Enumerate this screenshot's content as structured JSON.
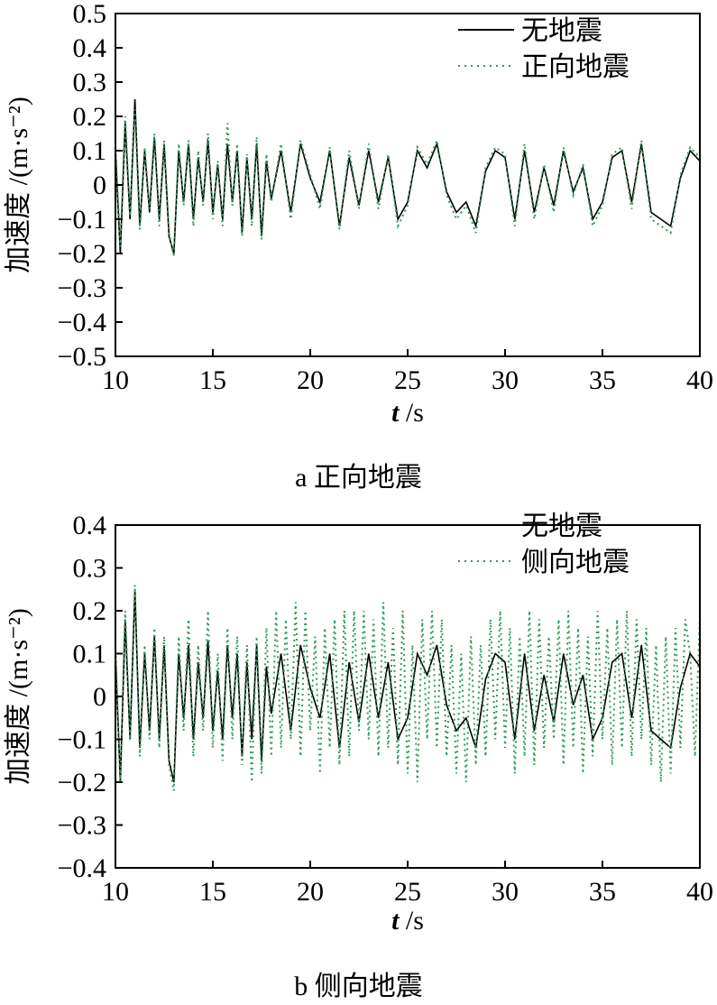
{
  "chart_data": [
    {
      "type": "line",
      "caption": "a 正向地震",
      "ylabel": "加速度 /(m·s⁻²)",
      "xlabel_var": "t",
      "xlabel_unit": "/s",
      "xlim": [
        10,
        40
      ],
      "ylim": [
        -0.5,
        0.5
      ],
      "xticks": [
        10,
        15,
        20,
        25,
        30,
        35,
        40
      ],
      "yticks": [
        -0.5,
        -0.4,
        -0.3,
        -0.2,
        -0.1,
        0,
        0.1,
        0.2,
        0.3,
        0.4,
        0.5
      ],
      "ytick_labels": [
        "−0.5",
        "−0.4",
        "−0.3",
        "−0.2",
        "−0.1",
        "0",
        "0.1",
        "0.2",
        "0.3",
        "0.4",
        "0.5"
      ],
      "xtick_labels": [
        "10",
        "15",
        "20",
        "25",
        "30",
        "35",
        "40"
      ],
      "legend_position": "top-right",
      "series": [
        {
          "name": "无地震",
          "color": "#000000",
          "style": "solid",
          "x": [
            10,
            10.25,
            10.5,
            10.75,
            11,
            11.25,
            11.5,
            11.75,
            12,
            12.25,
            12.5,
            12.75,
            13,
            13.25,
            13.5,
            13.75,
            14,
            14.25,
            14.5,
            14.75,
            15,
            15.25,
            15.5,
            15.75,
            16,
            16.25,
            16.5,
            16.75,
            17,
            17.25,
            17.5,
            17.75,
            18,
            18.5,
            19,
            19.5,
            20,
            20.5,
            21,
            21.5,
            22,
            22.5,
            23,
            23.5,
            24,
            24.5,
            25,
            25.5,
            26,
            26.5,
            27,
            27.5,
            28,
            28.5,
            29,
            29.5,
            30,
            30.5,
            31,
            31.5,
            32,
            32.5,
            33,
            33.5,
            34,
            34.5,
            35,
            35.5,
            36,
            36.5,
            37,
            37.5,
            38,
            38.5,
            39,
            39.5,
            40
          ],
          "y": [
            0.1,
            -0.2,
            0.18,
            -0.1,
            0.25,
            -0.12,
            0.1,
            -0.08,
            0.14,
            -0.1,
            0.12,
            -0.15,
            -0.2,
            0.1,
            -0.05,
            0.12,
            -0.1,
            0.08,
            -0.05,
            0.13,
            -0.08,
            0.06,
            -0.1,
            0.12,
            -0.05,
            0.1,
            -0.14,
            0.08,
            -0.1,
            0.12,
            -0.15,
            0.07,
            -0.04,
            0.1,
            -0.08,
            0.12,
            0.02,
            -0.05,
            0.1,
            -0.12,
            0.08,
            -0.06,
            0.1,
            -0.05,
            0.08,
            -0.1,
            -0.05,
            0.1,
            0.05,
            0.12,
            -0.02,
            -0.08,
            -0.05,
            -0.12,
            0.04,
            0.1,
            0.08,
            -0.1,
            0.1,
            -0.08,
            0.05,
            -0.06,
            0.1,
            -0.02,
            0.05,
            -0.1,
            -0.05,
            0.08,
            0.1,
            -0.05,
            0.12,
            -0.08,
            -0.1,
            -0.12,
            0.02,
            0.1,
            0.07
          ]
        },
        {
          "name": "正向地震",
          "color": "#2e9a5a",
          "style": "dotted",
          "x": [
            10,
            10.25,
            10.5,
            10.75,
            11,
            11.25,
            11.5,
            11.75,
            12,
            12.25,
            12.5,
            12.75,
            13,
            13.25,
            13.5,
            13.75,
            14,
            14.25,
            14.5,
            14.75,
            15,
            15.25,
            15.5,
            15.75,
            16,
            16.25,
            16.5,
            16.75,
            17,
            17.25,
            17.5,
            17.75,
            18,
            18.5,
            19,
            19.5,
            20,
            20.5,
            21,
            21.5,
            22,
            22.5,
            23,
            23.5,
            24,
            24.5,
            25,
            25.5,
            26,
            26.5,
            27,
            27.5,
            28,
            28.5,
            29,
            29.5,
            30,
            30.5,
            31,
            31.5,
            32,
            32.5,
            33,
            33.5,
            34,
            34.5,
            35,
            35.5,
            36,
            36.5,
            37,
            37.5,
            38,
            38.5,
            39,
            39.5,
            40
          ],
          "y": [
            0.12,
            -0.18,
            0.2,
            -0.09,
            0.22,
            -0.13,
            0.11,
            -0.07,
            0.15,
            -0.12,
            0.13,
            -0.14,
            -0.21,
            0.12,
            -0.06,
            0.13,
            -0.12,
            0.1,
            -0.06,
            0.15,
            -0.1,
            0.07,
            -0.12,
            0.18,
            -0.06,
            0.12,
            -0.15,
            0.09,
            -0.12,
            0.14,
            -0.16,
            0.09,
            -0.05,
            0.12,
            -0.1,
            0.13,
            0.03,
            -0.07,
            0.11,
            -0.13,
            0.1,
            -0.07,
            0.12,
            -0.07,
            0.09,
            -0.12,
            -0.06,
            0.11,
            0.06,
            0.13,
            -0.03,
            -0.1,
            -0.06,
            -0.14,
            0.05,
            0.11,
            0.09,
            -0.12,
            0.12,
            -0.1,
            0.06,
            -0.08,
            0.11,
            -0.03,
            0.06,
            -0.12,
            -0.06,
            0.09,
            0.11,
            -0.07,
            0.13,
            -0.1,
            -0.12,
            -0.14,
            0.03,
            0.11,
            0.08
          ]
        }
      ]
    },
    {
      "type": "line",
      "caption": "b 侧向地震",
      "ylabel": "加速度 /(m·s⁻²)",
      "xlabel_var": "t",
      "xlabel_unit": "/s",
      "xlim": [
        10,
        40
      ],
      "ylim": [
        -0.4,
        0.4
      ],
      "xticks": [
        10,
        15,
        20,
        25,
        30,
        35,
        40
      ],
      "yticks": [
        -0.4,
        -0.3,
        -0.2,
        -0.1,
        0,
        0.1,
        0.2,
        0.3,
        0.4
      ],
      "ytick_labels": [
        "−0.4",
        "−0.3",
        "−0.2",
        "−0.1",
        "0",
        "0.1",
        "0.2",
        "0.3",
        "0.4"
      ],
      "xtick_labels": [
        "10",
        "15",
        "20",
        "25",
        "30",
        "35",
        "40"
      ],
      "legend_position": "top-right",
      "series": [
        {
          "name": "无地震",
          "color": "#000000",
          "style": "solid",
          "x": [
            10,
            10.25,
            10.5,
            10.75,
            11,
            11.25,
            11.5,
            11.75,
            12,
            12.25,
            12.5,
            12.75,
            13,
            13.25,
            13.5,
            13.75,
            14,
            14.25,
            14.5,
            14.75,
            15,
            15.25,
            15.5,
            15.75,
            16,
            16.25,
            16.5,
            16.75,
            17,
            17.25,
            17.5,
            17.75,
            18,
            18.5,
            19,
            19.5,
            20,
            20.5,
            21,
            21.5,
            22,
            22.5,
            23,
            23.5,
            24,
            24.5,
            25,
            25.5,
            26,
            26.5,
            27,
            27.5,
            28,
            28.5,
            29,
            29.5,
            30,
            30.5,
            31,
            31.5,
            32,
            32.5,
            33,
            33.5,
            34,
            34.5,
            35,
            35.5,
            36,
            36.5,
            37,
            37.5,
            38,
            38.5,
            39,
            39.5,
            40
          ],
          "y": [
            0.1,
            -0.2,
            0.18,
            -0.1,
            0.25,
            -0.12,
            0.1,
            -0.08,
            0.14,
            -0.1,
            0.12,
            -0.15,
            -0.2,
            0.1,
            -0.05,
            0.12,
            -0.1,
            0.08,
            -0.05,
            0.13,
            -0.08,
            0.06,
            -0.1,
            0.12,
            -0.05,
            0.1,
            -0.14,
            0.08,
            -0.1,
            0.12,
            -0.15,
            0.07,
            -0.04,
            0.1,
            -0.08,
            0.12,
            0.02,
            -0.05,
            0.1,
            -0.12,
            0.08,
            -0.06,
            0.1,
            -0.05,
            0.08,
            -0.1,
            -0.05,
            0.1,
            0.05,
            0.12,
            -0.02,
            -0.08,
            -0.05,
            -0.12,
            0.04,
            0.1,
            0.08,
            -0.1,
            0.1,
            -0.08,
            0.05,
            -0.06,
            0.1,
            -0.02,
            0.05,
            -0.1,
            -0.05,
            0.08,
            0.1,
            -0.05,
            0.12,
            -0.08,
            -0.1,
            -0.12,
            0.02,
            0.1,
            0.07
          ]
        },
        {
          "name": "侧向地震",
          "color": "#2e9a5a",
          "style": "dotted",
          "x": [
            10,
            10.25,
            10.5,
            10.75,
            11,
            11.25,
            11.5,
            11.75,
            12,
            12.25,
            12.5,
            12.75,
            13,
            13.25,
            13.5,
            13.75,
            14,
            14.25,
            14.5,
            14.75,
            15,
            15.25,
            15.5,
            15.75,
            16,
            16.25,
            16.5,
            16.75,
            17,
            17.25,
            17.5,
            17.75,
            18,
            18.25,
            18.5,
            18.75,
            19,
            19.25,
            19.5,
            19.75,
            20,
            20.25,
            20.5,
            20.75,
            21,
            21.25,
            21.5,
            21.75,
            22,
            22.25,
            22.5,
            22.75,
            23,
            23.25,
            23.5,
            23.75,
            24,
            24.25,
            24.5,
            24.75,
            25,
            25.25,
            25.5,
            25.75,
            26,
            26.25,
            26.5,
            26.75,
            27,
            27.25,
            27.5,
            27.75,
            28,
            28.25,
            28.5,
            28.75,
            29,
            29.25,
            29.5,
            29.75,
            30,
            30.25,
            30.5,
            30.75,
            31,
            31.25,
            31.5,
            31.75,
            32,
            32.25,
            32.5,
            32.75,
            33,
            33.25,
            33.5,
            33.75,
            34,
            34.25,
            34.5,
            34.75,
            35,
            35.25,
            35.5,
            35.75,
            36,
            36.25,
            36.5,
            36.75,
            37,
            37.25,
            37.5,
            37.75,
            38,
            38.25,
            38.5,
            38.75,
            39,
            39.25,
            39.5,
            39.75,
            40
          ],
          "y": [
            0.12,
            -0.2,
            0.2,
            -0.1,
            0.26,
            -0.14,
            0.12,
            -0.1,
            0.16,
            -0.12,
            0.14,
            -0.16,
            -0.22,
            0.14,
            -0.08,
            0.18,
            -0.14,
            0.12,
            -0.08,
            0.2,
            -0.12,
            0.1,
            -0.15,
            0.16,
            -0.1,
            0.14,
            -0.16,
            0.12,
            -0.2,
            0.14,
            -0.18,
            0.16,
            -0.14,
            0.2,
            -0.12,
            0.18,
            -0.1,
            0.22,
            -0.14,
            0.2,
            -0.08,
            0.14,
            -0.18,
            0.16,
            -0.12,
            0.18,
            -0.16,
            0.2,
            -0.14,
            0.2,
            -0.08,
            0.2,
            -0.1,
            0.18,
            -0.14,
            0.22,
            -0.12,
            0.16,
            -0.16,
            0.2,
            -0.18,
            0.12,
            -0.2,
            0.18,
            -0.1,
            0.2,
            -0.12,
            0.18,
            -0.14,
            0.12,
            -0.18,
            0.1,
            -0.2,
            0.14,
            -0.16,
            0.12,
            -0.14,
            0.18,
            -0.1,
            0.2,
            -0.12,
            0.16,
            -0.18,
            0.14,
            -0.14,
            0.2,
            -0.16,
            0.18,
            -0.12,
            0.14,
            -0.1,
            0.18,
            -0.16,
            0.2,
            -0.12,
            0.16,
            -0.18,
            0.14,
            -0.14,
            0.2,
            -0.1,
            0.16,
            -0.16,
            0.18,
            -0.12,
            0.2,
            -0.14,
            0.18,
            -0.1,
            0.16,
            -0.16,
            0.12,
            -0.2,
            0.14,
            -0.18,
            0.16,
            -0.12,
            0.18,
            0.1,
            -0.14,
            0.19
          ]
        }
      ]
    }
  ]
}
